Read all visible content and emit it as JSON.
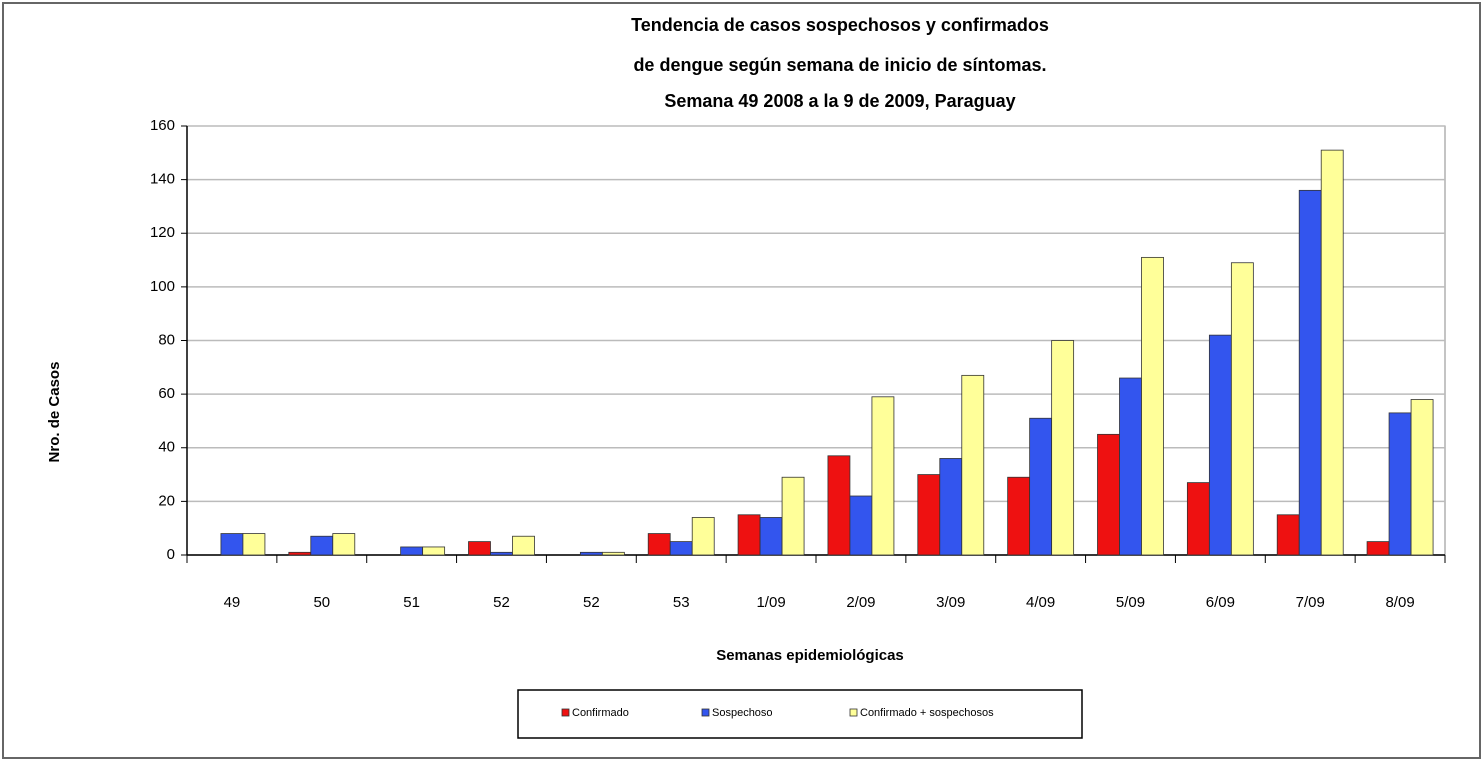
{
  "chart_data": {
    "type": "bar",
    "title": [
      "Tendencia de casos sospechosos y confirmados",
      "de dengue según semana de inicio de síntomas.",
      "Semana 49 2008 a la 9 de 2009, Paraguay"
    ],
    "x_label": "Semanas epidemiológicas",
    "y_label": "Nro. de Casos",
    "categories": [
      "49",
      "50",
      "51",
      "52",
      "52",
      "53",
      "1/09",
      "2/09",
      "3/09",
      "4/09",
      "5/09",
      "6/09",
      "7/09",
      "8/09"
    ],
    "series": [
      {
        "name": "Confirmado",
        "color": "#ee1111",
        "values": [
          0,
          1,
          0,
          5,
          0,
          8,
          15,
          37,
          30,
          29,
          45,
          27,
          15,
          5
        ]
      },
      {
        "name": "Sospechoso",
        "color": "#3355ee",
        "values": [
          8,
          7,
          3,
          1,
          1,
          5,
          14,
          22,
          36,
          51,
          66,
          82,
          136,
          53
        ]
      },
      {
        "name": "Confirmado + sospechosos",
        "color": "#ffff99",
        "values": [
          8,
          8,
          3,
          7,
          1,
          14,
          29,
          59,
          67,
          80,
          111,
          109,
          151,
          58
        ]
      }
    ],
    "ylim": [
      0,
      160
    ],
    "yticks": [
      0,
      20,
      40,
      60,
      80,
      100,
      120,
      140,
      160
    ],
    "grid": true,
    "legend": "bottom"
  }
}
